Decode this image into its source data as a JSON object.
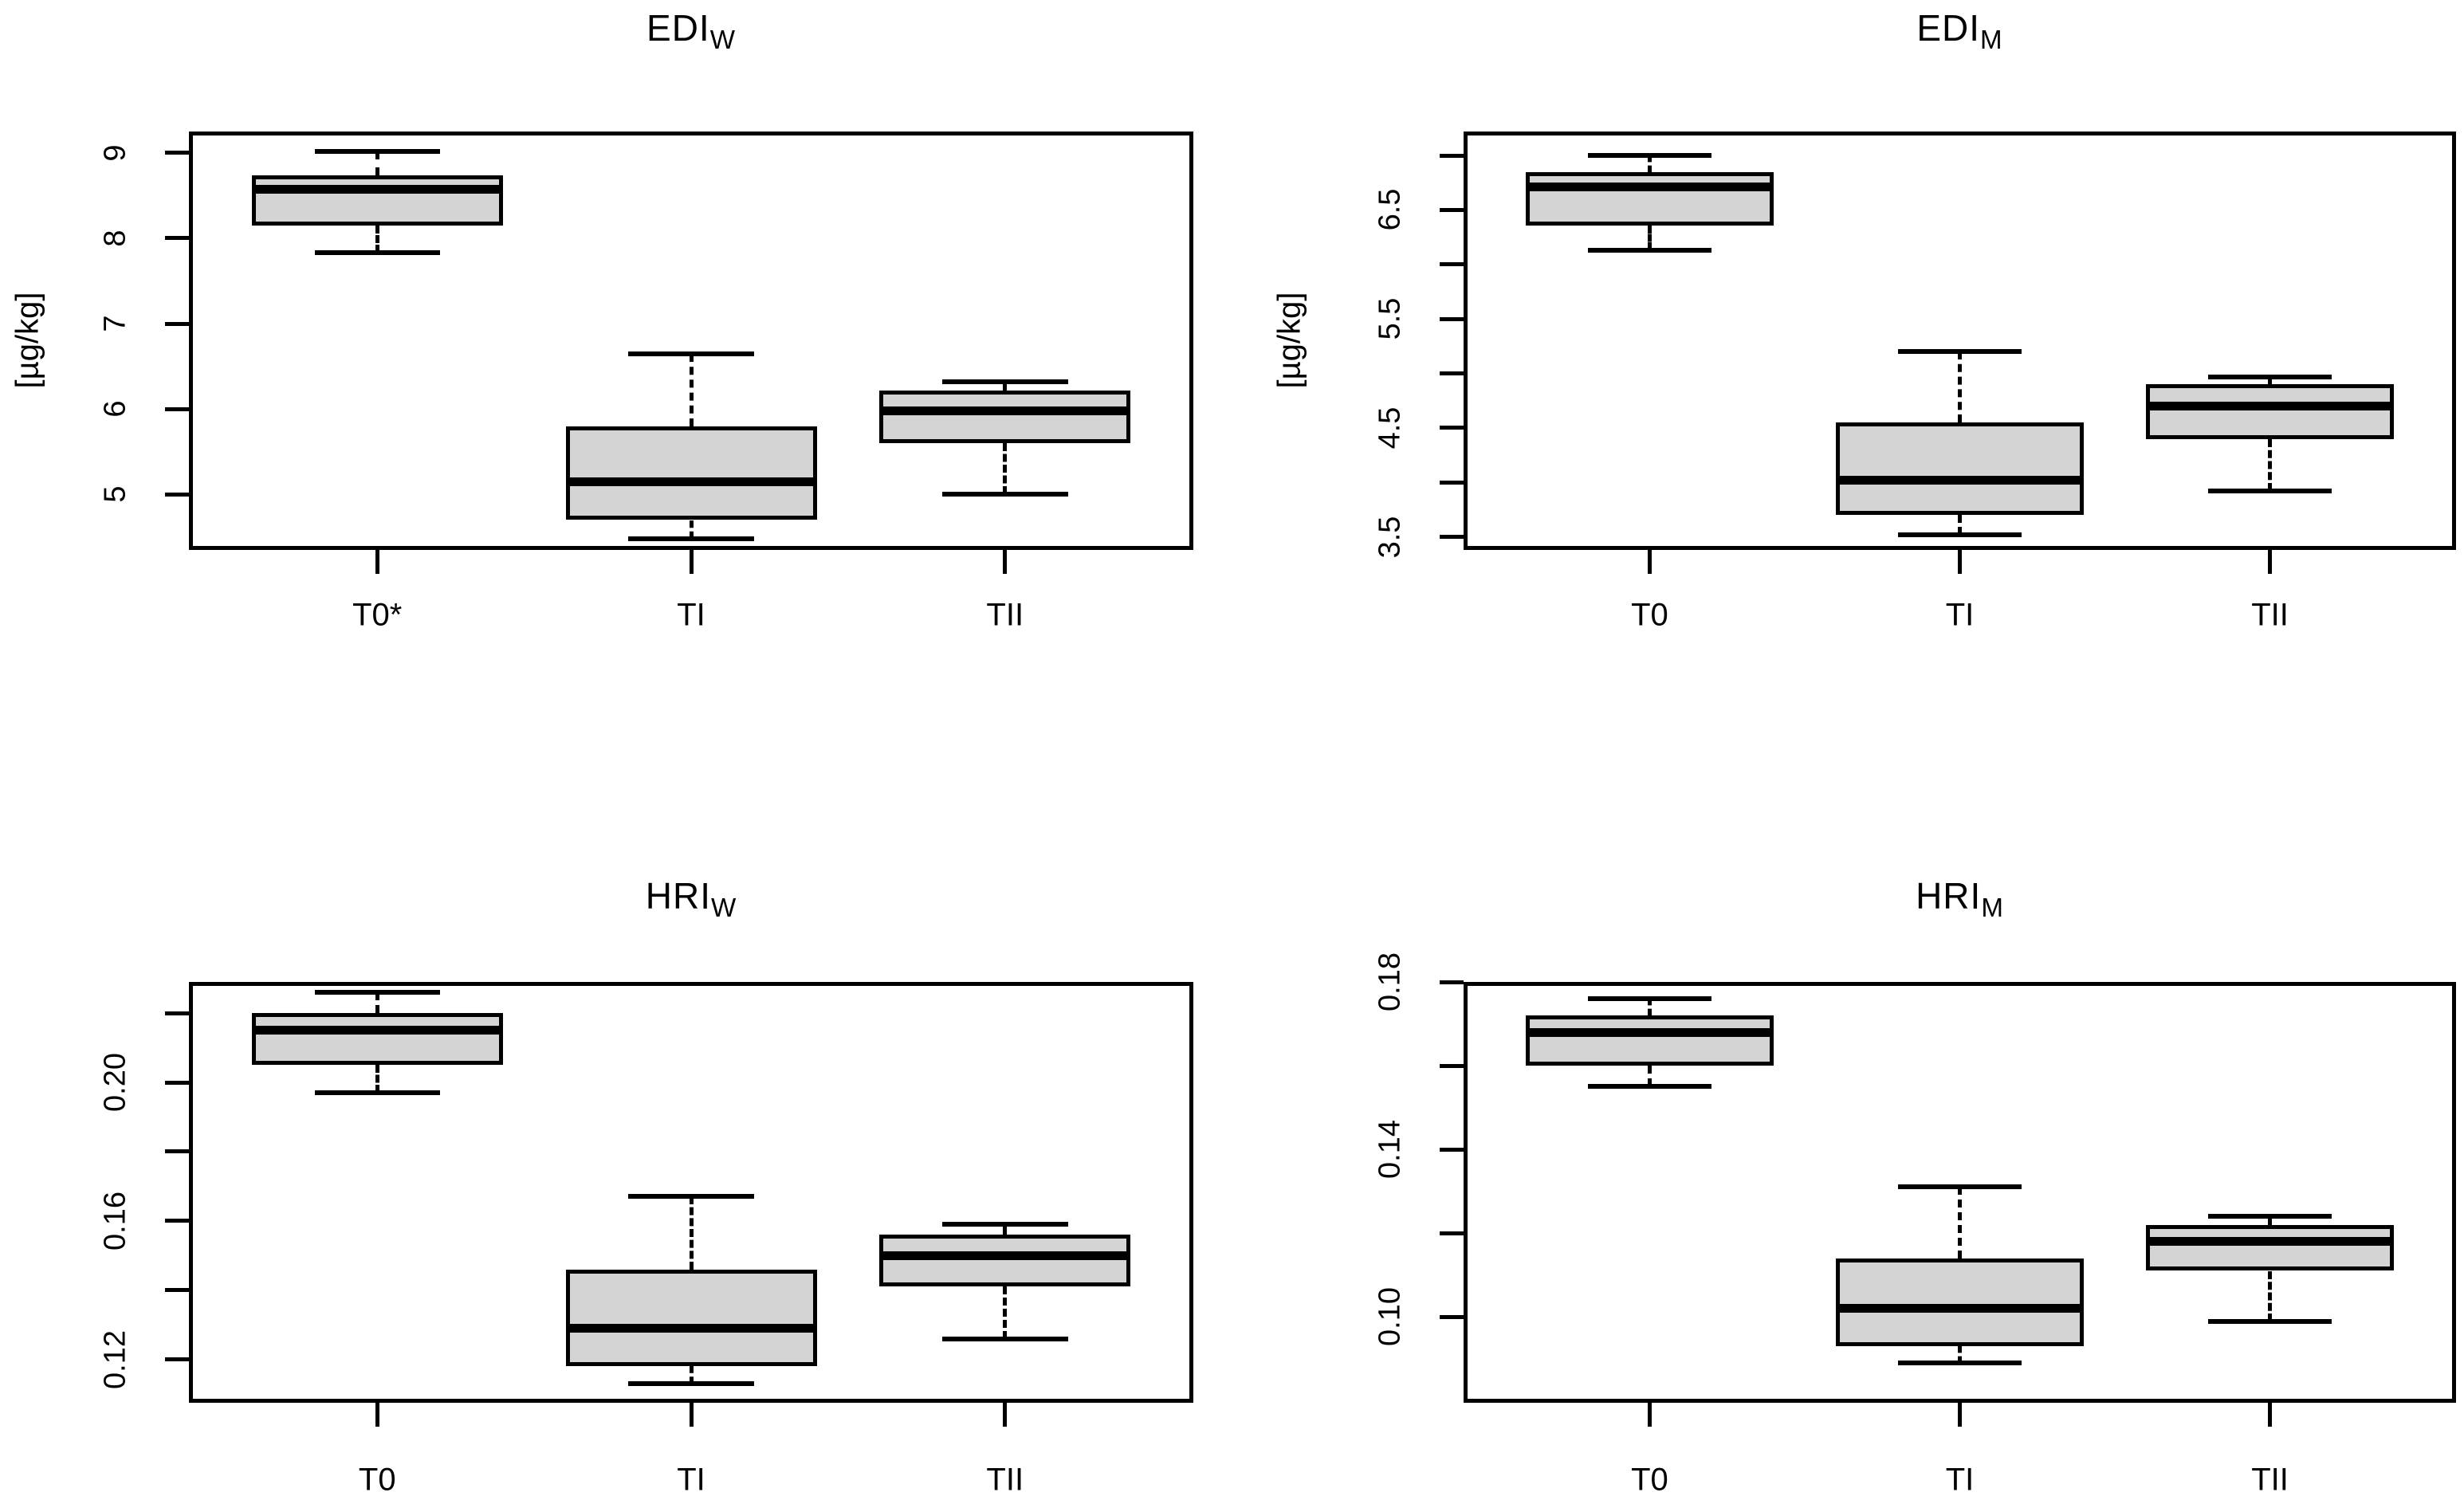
{
  "figure": {
    "background_color": "#ffffff",
    "box_fill_color": "#d4d4d4",
    "line_color": "#000000"
  },
  "chart_data": [
    {
      "type": "boxplot",
      "title_main": "EDI",
      "title_sub": "W",
      "ylabel": "[µg/kg]",
      "categories": [
        "T0*",
        "TI",
        "TII"
      ],
      "ylim": [
        4.35,
        9.25
      ],
      "grid": false,
      "yticks": [
        {
          "v": 5,
          "label": "5"
        },
        {
          "v": 6,
          "label": "6"
        },
        {
          "v": 7,
          "label": "7"
        },
        {
          "v": 8,
          "label": "8"
        },
        {
          "v": 9,
          "label": "9"
        }
      ],
      "boxes": [
        {
          "category": "T0*",
          "whisker_low": 7.83,
          "q1": 8.15,
          "median": 8.57,
          "q3": 8.74,
          "whisker_high": 9.02
        },
        {
          "category": "TI",
          "whisker_low": 4.48,
          "q1": 4.7,
          "median": 5.15,
          "q3": 5.8,
          "whisker_high": 6.65
        },
        {
          "category": "TII",
          "whisker_low": 5.0,
          "q1": 5.6,
          "median": 5.98,
          "q3": 6.22,
          "whisker_high": 6.32
        }
      ]
    },
    {
      "type": "boxplot",
      "title_main": "EDI",
      "title_sub": "M",
      "ylabel": "[µg/kg]",
      "categories": [
        "T0",
        "TI",
        "TII"
      ],
      "ylim": [
        3.38,
        7.22
      ],
      "grid": false,
      "yticks": [
        {
          "v": 3.5,
          "label": "3.5"
        },
        {
          "v": 4.0,
          "label": ""
        },
        {
          "v": 4.5,
          "label": "4.5"
        },
        {
          "v": 5.0,
          "label": ""
        },
        {
          "v": 5.5,
          "label": "5.5"
        },
        {
          "v": 6.0,
          "label": ""
        },
        {
          "v": 6.5,
          "label": "6.5"
        },
        {
          "v": 7.0,
          "label": ""
        }
      ],
      "boxes": [
        {
          "category": "T0",
          "whisker_low": 6.13,
          "q1": 6.36,
          "median": 6.71,
          "q3": 6.85,
          "whisker_high": 7.0
        },
        {
          "category": "TI",
          "whisker_low": 3.52,
          "q1": 3.7,
          "median": 4.02,
          "q3": 4.55,
          "whisker_high": 5.2
        },
        {
          "category": "TII",
          "whisker_low": 3.92,
          "q1": 4.4,
          "median": 4.7,
          "q3": 4.9,
          "whisker_high": 4.97
        }
      ]
    },
    {
      "type": "boxplot",
      "title_main": "HRI",
      "title_sub": "W",
      "ylabel": "",
      "categories": [
        "T0",
        "TI",
        "TII"
      ],
      "ylim": [
        0.1075,
        0.229
      ],
      "grid": false,
      "yticks": [
        {
          "v": 0.12,
          "label": "0.12"
        },
        {
          "v": 0.14,
          "label": ""
        },
        {
          "v": 0.16,
          "label": "0.16"
        },
        {
          "v": 0.18,
          "label": ""
        },
        {
          "v": 0.2,
          "label": "0.20"
        },
        {
          "v": 0.22,
          "label": ""
        }
      ],
      "boxes": [
        {
          "category": "T0",
          "whisker_low": 0.197,
          "q1": 0.205,
          "median": 0.215,
          "q3": 0.22,
          "whisker_high": 0.226
        },
        {
          "category": "TI",
          "whisker_low": 0.113,
          "q1": 0.118,
          "median": 0.129,
          "q3": 0.146,
          "whisker_high": 0.167
        },
        {
          "category": "TII",
          "whisker_low": 0.126,
          "q1": 0.141,
          "median": 0.15,
          "q3": 0.156,
          "whisker_high": 0.159
        }
      ]
    },
    {
      "type": "boxplot",
      "title_main": "HRI",
      "title_sub": "M",
      "ylabel": "",
      "categories": [
        "T0",
        "TI",
        "TII"
      ],
      "ylim": [
        0.0795,
        0.18
      ],
      "grid": false,
      "yticks": [
        {
          "v": 0.1,
          "label": "0.10"
        },
        {
          "v": 0.12,
          "label": ""
        },
        {
          "v": 0.14,
          "label": "0.14"
        },
        {
          "v": 0.16,
          "label": ""
        },
        {
          "v": 0.18,
          "label": "0.18"
        }
      ],
      "boxes": [
        {
          "category": "T0",
          "whisker_low": 0.155,
          "q1": 0.16,
          "median": 0.168,
          "q3": 0.172,
          "whisker_high": 0.176
        },
        {
          "category": "TI",
          "whisker_low": 0.089,
          "q1": 0.093,
          "median": 0.102,
          "q3": 0.114,
          "whisker_high": 0.131
        },
        {
          "category": "TII",
          "whisker_low": 0.099,
          "q1": 0.111,
          "median": 0.118,
          "q3": 0.122,
          "whisker_high": 0.124
        }
      ]
    }
  ]
}
